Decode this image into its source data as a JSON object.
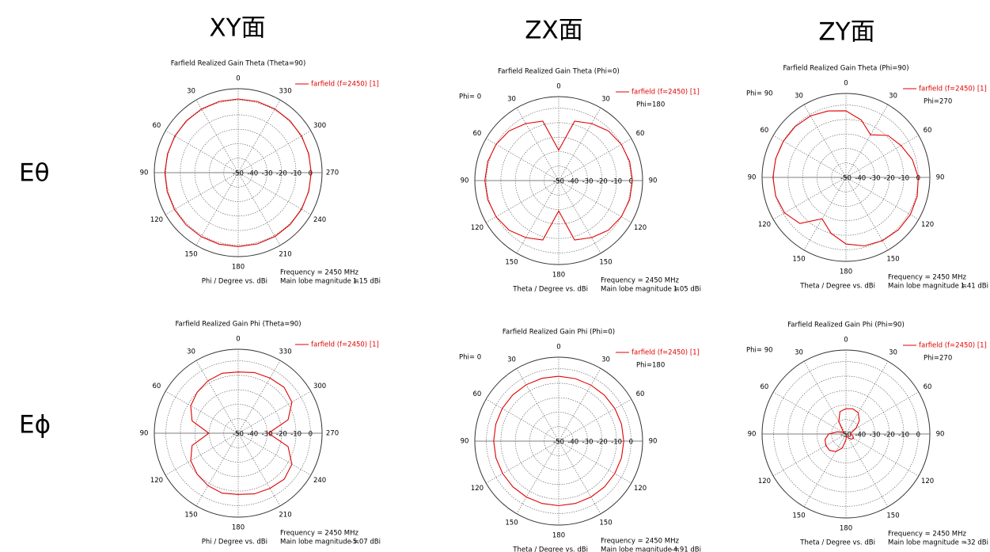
{
  "column_headers": [
    "XY面",
    "ZX面",
    "ZY面"
  ],
  "row_labels": [
    "Eθ",
    "Eϕ"
  ],
  "chart_data": [
    {
      "type": "polar",
      "title": "Farfield Realized Gain Theta (Theta=90)",
      "x": [
        0,
        15,
        30,
        45,
        60,
        75,
        90,
        105,
        120,
        135,
        150,
        165,
        180,
        195,
        210,
        225,
        240,
        255,
        270,
        285,
        300,
        315,
        330,
        345
      ],
      "series": [
        {
          "name": "farfield (f=2450) [1]",
          "color": "#e00000",
          "values": [
            0.9,
            0.9,
            0.8,
            0.7,
            0.6,
            0.6,
            0.7,
            0.8,
            0.9,
            1.0,
            1.1,
            1.15,
            1.1,
            1.0,
            0.9,
            0.8,
            0.6,
            0.5,
            0.5,
            0.5,
            0.6,
            0.7,
            0.8,
            0.9
          ]
        }
      ],
      "rlim": [
        -50,
        8
      ],
      "rticks": [
        -50,
        -40,
        -30,
        -20,
        -10,
        0
      ],
      "angle_ticks": [
        0,
        30,
        60,
        90,
        120,
        150,
        180,
        210,
        240,
        270,
        300,
        330
      ],
      "footer": {
        "frequency": "Frequency = 2450 MHz",
        "axis_label": "Phi / Degree vs. dBi",
        "main_lobe_label": "Main lobe magnitude =",
        "main_lobe_value": "1.15 dBi"
      }
    },
    {
      "type": "polar",
      "title": "Farfield Realized Gain Theta (Phi=0)",
      "x": [
        0,
        15,
        30,
        45,
        60,
        75,
        90,
        105,
        120,
        135,
        150,
        165,
        180,
        195,
        210,
        225,
        240,
        255,
        270,
        285,
        300,
        315,
        330,
        345
      ],
      "series": [
        {
          "name": "farfield (f=2450) [1]",
          "color": "#e00000",
          "values": [
            -29,
            -7.5,
            -4.5,
            -1.5,
            0,
            0.8,
            1.05,
            0.8,
            0,
            -1.5,
            -4.5,
            -7.5,
            -29,
            -7.5,
            -4.5,
            -1.5,
            0,
            0.8,
            1.0,
            0.8,
            0,
            -1.5,
            -4.5,
            -7.5
          ]
        }
      ],
      "rlim": [
        -50,
        8
      ],
      "rticks": [
        -50,
        -40,
        -30,
        -20,
        -10,
        0
      ],
      "angle_ticks": [
        0,
        30,
        60,
        90,
        120,
        150,
        180,
        {
          "value": 210,
          "label": "150"
        },
        {
          "value": 240,
          "label": "120"
        },
        {
          "value": 270,
          "label": "90"
        },
        {
          "value": 300,
          "label": "60"
        },
        {
          "value": 330,
          "label": "30"
        }
      ],
      "side_labels": [
        "Phi=  0",
        "Phi=180"
      ],
      "footer": {
        "frequency": "Frequency = 2450 MHz",
        "axis_label": "Theta / Degree vs. dBi",
        "main_lobe_label": "Main lobe magnitude =",
        "main_lobe_value": "1.05 dBi"
      }
    },
    {
      "type": "polar",
      "title": "Farfield Realized Gain Theta (Phi=90)",
      "x": [
        0,
        15,
        30,
        45,
        60,
        75,
        90,
        105,
        120,
        135,
        150,
        165,
        180,
        195,
        210,
        225,
        240,
        255,
        270,
        285,
        300,
        315,
        330,
        345
      ],
      "series": [
        {
          "name": "farfield (f=2450) [1]",
          "color": "#e00000",
          "values": [
            -4,
            -2.5,
            -1,
            -0.3,
            0,
            0.3,
            0.5,
            0.3,
            -1,
            -5,
            -17,
            -10,
            -4,
            -1,
            0.5,
            1.2,
            1.41,
            1,
            0,
            -2.5,
            -6,
            -9,
            -16,
            -9
          ]
        }
      ],
      "rlim": [
        -50,
        8
      ],
      "rticks": [
        -50,
        -40,
        -30,
        -20,
        -10,
        0
      ],
      "angle_ticks": [
        0,
        30,
        60,
        90,
        120,
        150,
        180,
        {
          "value": 210,
          "label": "150"
        },
        {
          "value": 240,
          "label": "120"
        },
        {
          "value": 270,
          "label": "90"
        },
        {
          "value": 300,
          "label": "60"
        },
        {
          "value": 330,
          "label": "30"
        }
      ],
      "side_labels": [
        "Phi= 90",
        "Phi=270"
      ],
      "footer": {
        "frequency": "Frequency = 2450 MHz",
        "axis_label": "Theta / Degree vs. dBi",
        "main_lobe_label": "Main lobe magnitude =",
        "main_lobe_value": "1.41 dBi"
      }
    },
    {
      "type": "polar",
      "title": "Farfield Realized Gain Phi (Theta=90)",
      "x": [
        0,
        15,
        30,
        45,
        60,
        75,
        90,
        105,
        120,
        135,
        150,
        165,
        180,
        195,
        210,
        225,
        240,
        255,
        270,
        285,
        300,
        315,
        330,
        345
      ],
      "series": [
        {
          "name": "farfield (f=2450) [1]",
          "color": "#e00000",
          "values": [
            -7.7,
            -7.1,
            -8.2,
            -9.9,
            -12.1,
            -17.0,
            -29.7,
            -17.0,
            -12.1,
            -9.9,
            -8.2,
            -7.1,
            -7.7,
            -6.6,
            -6.0,
            -5.07,
            -7.1,
            -14.3,
            -29.1,
            -14.3,
            -7.1,
            -5.1,
            -6.0,
            -6.6
          ]
        }
      ],
      "rlim": [
        -50,
        8
      ],
      "rticks": [
        -50,
        -40,
        -30,
        -20,
        -10,
        0
      ],
      "angle_ticks": [
        0,
        30,
        60,
        90,
        120,
        150,
        180,
        210,
        240,
        270,
        300,
        330
      ],
      "footer": {
        "frequency": "Frequency = 2450 MHz",
        "axis_label": "Phi / Degree vs. dBi",
        "main_lobe_label": "Main lobe magnitude =",
        "main_lobe_value": "-5.07 dBi"
      }
    },
    {
      "type": "polar",
      "title": "Farfield Realized Gain Phi (Phi=0)",
      "x": [
        0,
        15,
        30,
        45,
        60,
        75,
        90,
        105,
        120,
        135,
        150,
        165,
        180,
        195,
        210,
        225,
        240,
        255,
        270,
        285,
        300,
        315,
        330,
        345
      ],
      "series": [
        {
          "name": "farfield (f=2450) [1]",
          "color": "#e00000",
          "values": [
            -5.2,
            -5.1,
            -5.0,
            -4.95,
            -4.91,
            -4.95,
            -5.0,
            -5.1,
            -5.2,
            -5.3,
            -5.4,
            -5.4,
            -5.4,
            -5.4,
            -5.4,
            -5.3,
            -5.2,
            -5.1,
            -5.0,
            -5.0,
            -5.1,
            -5.2,
            -5.3,
            -5.3
          ]
        }
      ],
      "rlim": [
        -50,
        8
      ],
      "rticks": [
        -50,
        -40,
        -30,
        -20,
        -10,
        0
      ],
      "angle_ticks": [
        0,
        30,
        60,
        90,
        120,
        150,
        180,
        {
          "value": 210,
          "label": "150"
        },
        {
          "value": 240,
          "label": "120"
        },
        {
          "value": 270,
          "label": "90"
        },
        {
          "value": 300,
          "label": "60"
        },
        {
          "value": 330,
          "label": "30"
        }
      ],
      "side_labels": [
        "Phi=  0",
        "Phi=180"
      ],
      "footer": {
        "frequency": "Frequency = 2450 MHz",
        "axis_label": "Theta / Degree vs. dBi",
        "main_lobe_label": "Main lobe magnitude =",
        "main_lobe_value": "-4.91 dBi"
      }
    },
    {
      "type": "polar",
      "title": "Farfield Realized Gain Phi (Phi=90)",
      "x": [
        0,
        15,
        30,
        45,
        60,
        75,
        90,
        105,
        120,
        135,
        150,
        165,
        180,
        195,
        210,
        225,
        240,
        255,
        270,
        285,
        300,
        315,
        330,
        345
      ],
      "series": [
        {
          "name": "farfield (f=2450) [1]",
          "color": "#e00000",
          "values": [
            -32.5,
            -34,
            -40,
            -47,
            -48,
            -44,
            -38,
            -35,
            -34,
            -34,
            -36,
            -40,
            -46,
            -49,
            -47,
            -45,
            -44,
            -45,
            -47,
            -46,
            -42,
            -37,
            -33,
            -32
          ]
        }
      ],
      "rlim": [
        -50,
        8
      ],
      "rticks": [
        -50,
        -40,
        -30,
        -20,
        -10,
        0
      ],
      "angle_ticks": [
        0,
        30,
        60,
        90,
        120,
        150,
        180,
        {
          "value": 210,
          "label": "150"
        },
        {
          "value": 240,
          "label": "120"
        },
        {
          "value": 270,
          "label": "90"
        },
        {
          "value": 300,
          "label": "60"
        },
        {
          "value": 330,
          "label": "30"
        }
      ],
      "side_labels": [
        "Phi= 90",
        "Phi=270"
      ],
      "footer": {
        "frequency": "Frequency = 2450 MHz",
        "axis_label": "Theta / Degree vs. dBi",
        "main_lobe_label": "Main lobe magnitude =",
        "main_lobe_value": "-32 dBi"
      }
    }
  ]
}
